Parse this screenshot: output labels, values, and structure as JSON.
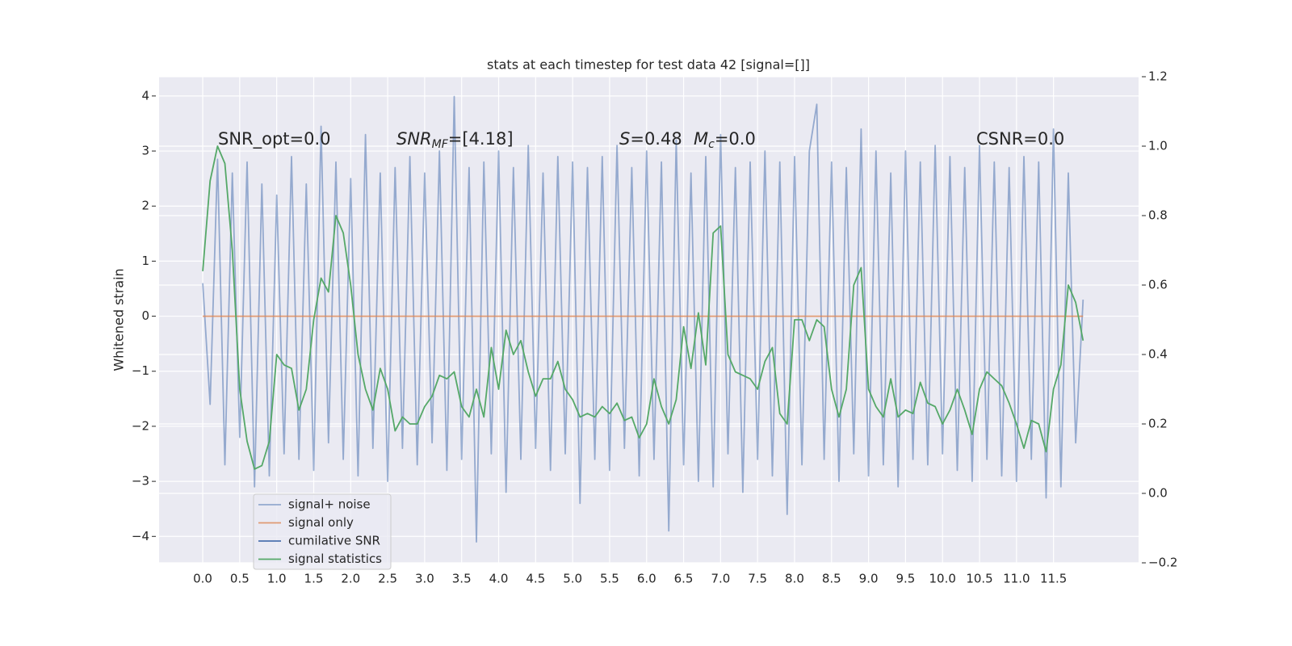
{
  "chart_data": {
    "type": "line",
    "title": "stats at each timestep for test data 42 [signal=[]]",
    "ylabel": "Whitened strain",
    "grid": true,
    "legend": "lower left",
    "x": [
      0.0,
      0.1,
      0.2,
      0.3,
      0.4,
      0.5,
      0.6,
      0.7,
      0.8,
      0.9,
      1.0,
      1.1,
      1.2,
      1.3,
      1.4,
      1.5,
      1.6,
      1.7,
      1.8,
      1.9,
      2.0,
      2.1,
      2.2,
      2.3,
      2.4,
      2.5,
      2.6,
      2.7,
      2.8,
      2.9,
      3.0,
      3.1,
      3.2,
      3.3,
      3.4,
      3.5,
      3.6,
      3.7,
      3.8,
      3.9,
      4.0,
      4.1,
      4.2,
      4.3,
      4.4,
      4.5,
      4.6,
      4.7,
      4.8,
      4.9,
      5.0,
      5.1,
      5.2,
      5.3,
      5.4,
      5.5,
      5.6,
      5.7,
      5.8,
      5.9,
      6.0,
      6.1,
      6.2,
      6.3,
      6.4,
      6.5,
      6.6,
      6.7,
      6.8,
      6.9,
      7.0,
      7.1,
      7.2,
      7.3,
      7.4,
      7.5,
      7.6,
      7.7,
      7.8,
      7.9,
      8.0,
      8.1,
      8.2,
      8.3,
      8.4,
      8.5,
      8.6,
      8.7,
      8.8,
      8.9,
      9.0,
      9.1,
      9.2,
      9.3,
      9.4,
      9.5,
      9.6,
      9.7,
      9.8,
      9.9,
      10.0,
      10.1,
      10.2,
      10.3,
      10.4,
      10.5,
      10.6,
      10.7,
      10.8,
      10.9,
      11.0,
      11.1,
      11.2,
      11.3,
      11.4,
      11.5,
      11.6,
      11.7,
      11.8,
      11.9
    ],
    "xlim": [
      -0.59,
      12.65
    ],
    "xticks": [
      {
        "value": 0,
        "label": "0.0"
      },
      0.5,
      {
        "value": 1,
        "label": "1.0"
      },
      1.5,
      {
        "value": 2,
        "label": "2.0"
      },
      2.5,
      {
        "value": 3,
        "label": "3.0"
      },
      3.5,
      {
        "value": 4,
        "label": "4.0"
      },
      4.5,
      {
        "value": 5,
        "label": "5.0"
      },
      5.5,
      {
        "value": 6,
        "label": "6.0"
      },
      6.5,
      {
        "value": 7,
        "label": "7.0"
      },
      7.5,
      {
        "value": 8,
        "label": "8.0"
      },
      8.5,
      {
        "value": 9,
        "label": "9.0"
      },
      9.5,
      {
        "value": 10,
        "label": "10.0"
      },
      10.5,
      {
        "value": 11,
        "label": "11.0"
      },
      11.5
    ],
    "ylim": [
      -4.48,
      4.35
    ],
    "yticks": [
      {
        "value": -4,
        "label": "−4"
      },
      {
        "value": -3,
        "label": "−3"
      },
      {
        "value": -2,
        "label": "−2"
      },
      {
        "value": -1,
        "label": "−1"
      },
      0,
      1,
      2,
      3,
      4
    ],
    "y2lim": [
      -0.2,
      1.2
    ],
    "y2ticks": [
      {
        "value": -0.2,
        "label": "−0.2"
      },
      {
        "value": 0,
        "label": "0.0"
      },
      0.2,
      0.4,
      0.6,
      0.8,
      {
        "value": 1,
        "label": "1.0"
      },
      1.2
    ],
    "annotations": [
      {
        "text": "SNR_opt=0.0"
      },
      {
        "base": "SNR",
        "sub": "MF",
        "rest": "=[4.18]"
      },
      {
        "base": "S",
        "rest": "=0.48"
      },
      {
        "base": "M",
        "sub": "c",
        "rest": "=0.0"
      },
      {
        "text": "CSNR=0.0"
      }
    ],
    "series": [
      {
        "name": "signal+ noise",
        "color": "#4c72b0",
        "opacity": 0.55,
        "values": [
          0.6,
          -1.6,
          2.85,
          -2.7,
          2.6,
          -2.2,
          2.8,
          -3.1,
          2.4,
          -2.9,
          2.2,
          -2.5,
          2.9,
          -2.6,
          2.4,
          -2.8,
          3.45,
          -2.3,
          2.8,
          -2.6,
          2.5,
          -2.9,
          3.3,
          -2.4,
          2.6,
          -3.0,
          2.7,
          -2.4,
          2.9,
          -2.7,
          2.6,
          -2.3,
          3.0,
          -2.8,
          3.99,
          -2.6,
          2.7,
          -4.1,
          2.8,
          -2.5,
          3.0,
          -3.2,
          2.7,
          -2.6,
          3.1,
          -2.4,
          2.6,
          -2.8,
          2.9,
          -2.5,
          2.8,
          -3.4,
          2.7,
          -2.6,
          2.9,
          -2.8,
          3.1,
          -2.4,
          2.7,
          -2.9,
          3.0,
          -2.6,
          2.8,
          -3.9,
          3.2,
          -2.7,
          2.6,
          -3.0,
          2.9,
          -3.1,
          3.3,
          -2.5,
          2.7,
          -3.2,
          2.8,
          -2.6,
          3.0,
          -2.9,
          2.8,
          -3.6,
          2.9,
          -2.7,
          3.0,
          3.85,
          -2.6,
          2.8,
          -3.0,
          2.7,
          -2.5,
          3.4,
          -2.9,
          3.0,
          -2.7,
          2.6,
          -3.1,
          3.0,
          -2.6,
          2.8,
          -2.7,
          3.1,
          -2.5,
          2.9,
          -2.8,
          2.7,
          -3.0,
          3.1,
          -2.6,
          2.8,
          -2.9,
          2.7,
          -3.0,
          2.9,
          -2.6,
          2.8,
          -3.3,
          3.4,
          -3.1,
          2.6,
          -2.3,
          0.3
        ]
      },
      {
        "name": "signal only",
        "color": "#dd8452",
        "opacity": 0.8,
        "x": [
          0.0,
          11.9
        ],
        "values": [
          0,
          0
        ]
      },
      {
        "name": "cumilative SNR",
        "color": "#4c72b0",
        "axis": "y2",
        "x": [],
        "values": []
      },
      {
        "name": "signal statistics",
        "color": "#55a868",
        "axis": "y2",
        "values": [
          0.64,
          0.9,
          1.0,
          0.95,
          0.7,
          0.3,
          0.15,
          0.07,
          0.08,
          0.15,
          0.4,
          0.37,
          0.36,
          0.24,
          0.3,
          0.5,
          0.62,
          0.58,
          0.8,
          0.75,
          0.6,
          0.4,
          0.3,
          0.24,
          0.36,
          0.3,
          0.18,
          0.22,
          0.2,
          0.2,
          0.25,
          0.28,
          0.34,
          0.33,
          0.35,
          0.25,
          0.22,
          0.3,
          0.22,
          0.42,
          0.3,
          0.47,
          0.4,
          0.44,
          0.35,
          0.28,
          0.33,
          0.33,
          0.38,
          0.3,
          0.27,
          0.22,
          0.23,
          0.22,
          0.25,
          0.23,
          0.26,
          0.21,
          0.22,
          0.16,
          0.2,
          0.33,
          0.25,
          0.2,
          0.27,
          0.48,
          0.36,
          0.52,
          0.37,
          0.75,
          0.77,
          0.4,
          0.35,
          0.34,
          0.33,
          0.3,
          0.38,
          0.42,
          0.23,
          0.2,
          0.5,
          0.5,
          0.44,
          0.5,
          0.48,
          0.3,
          0.22,
          0.3,
          0.6,
          0.65,
          0.3,
          0.25,
          0.22,
          0.33,
          0.22,
          0.24,
          0.23,
          0.32,
          0.26,
          0.25,
          0.2,
          0.24,
          0.3,
          0.24,
          0.17,
          0.3,
          0.35,
          0.33,
          0.31,
          0.26,
          0.2,
          0.13,
          0.21,
          0.2,
          0.12,
          0.3,
          0.37,
          0.6,
          0.55,
          0.44
        ]
      }
    ]
  }
}
